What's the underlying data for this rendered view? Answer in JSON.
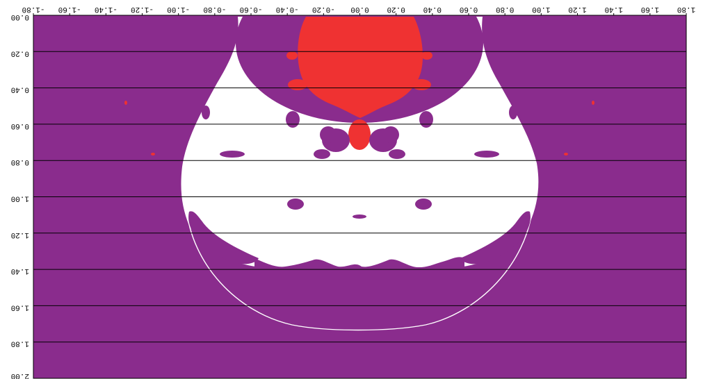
{
  "figure": {
    "colors": {
      "background_region": "#8a2c8d",
      "escape_region": "#ffffff",
      "core_region": "#ef3232",
      "grid_line": "#000000",
      "frame": "#000000"
    },
    "x_axis": {
      "range": [
        -1.8,
        1.8
      ],
      "ticks": [
        -1.8,
        -1.6,
        -1.4,
        -1.2,
        -1.0,
        -0.8,
        -0.6,
        -0.4,
        -0.2,
        0.0,
        0.2,
        0.4,
        0.6,
        0.8,
        1.0,
        1.2,
        1.4,
        1.6,
        1.8
      ],
      "tick_labels": [
        "-1.80",
        "-1.60",
        "-1.40",
        "-1.20",
        "-1.00",
        "-0.80",
        "-0.60",
        "-0.40",
        "-0.20",
        "0.00",
        "0.20",
        "0.40",
        "0.60",
        "0.80",
        "1.00",
        "1.20",
        "1.40",
        "1.60",
        "1.80"
      ],
      "labels_mirrored": true
    },
    "y_axis": {
      "range": [
        0.0,
        2.0
      ],
      "ticks": [
        0.0,
        0.2,
        0.4,
        0.6,
        0.8,
        1.0,
        1.2,
        1.4,
        1.6,
        1.8,
        2.0
      ],
      "tick_labels": [
        "0.00",
        "0.20",
        "0.40",
        "0.60",
        "0.80",
        "1.00",
        "1.20",
        "1.40",
        "1.60",
        "1.80",
        "2.00"
      ],
      "labels_mirrored": true
    },
    "horizontal_gridlines": true
  }
}
